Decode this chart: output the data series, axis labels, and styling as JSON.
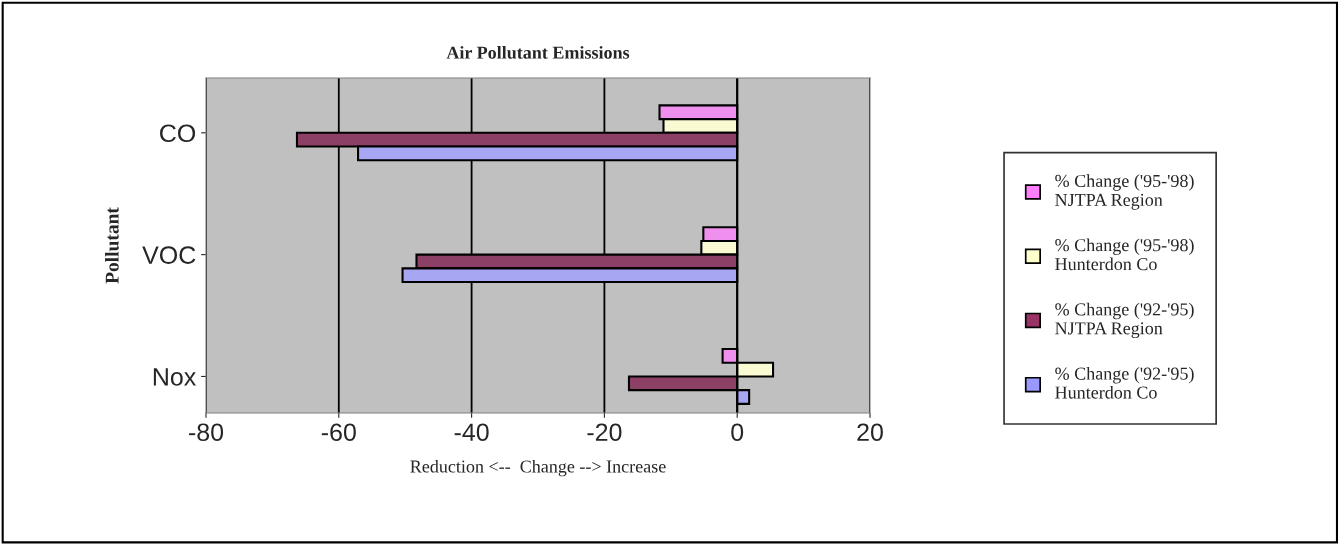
{
  "chart_data": {
    "type": "bar",
    "orientation": "horizontal",
    "title": "Air Pollutant Emissions",
    "xlabel": "Reduction <--  Change --> Increase",
    "ylabel": "Pollutant",
    "categories": [
      "CO",
      "VOC",
      "Nox"
    ],
    "series": [
      {
        "name": "% Change ('95-'98)\nNJTPA Region",
        "color": "#ff80ff",
        "values": [
          -11.7,
          -5.1,
          -2.2
        ]
      },
      {
        "name": "% Change ('95-'98)\nHunterdon Co",
        "color": "#ffffcc",
        "values": [
          -11.1,
          -5.4,
          5.4
        ]
      },
      {
        "name": "% Change ('92-'95)\nNJTPA Region",
        "color": "#993366",
        "values": [
          -66.3,
          -48.3,
          -16.3
        ]
      },
      {
        "name": "% Change ('92-'95)\nHunterdon Co",
        "color": "#9999ff",
        "values": [
          -57.1,
          -50.4,
          1.8
        ]
      }
    ],
    "xlim": [
      -80,
      20
    ],
    "xticks": [
      -80,
      -60,
      -40,
      -20,
      0,
      20
    ],
    "grid": "x",
    "legend": "right"
  }
}
